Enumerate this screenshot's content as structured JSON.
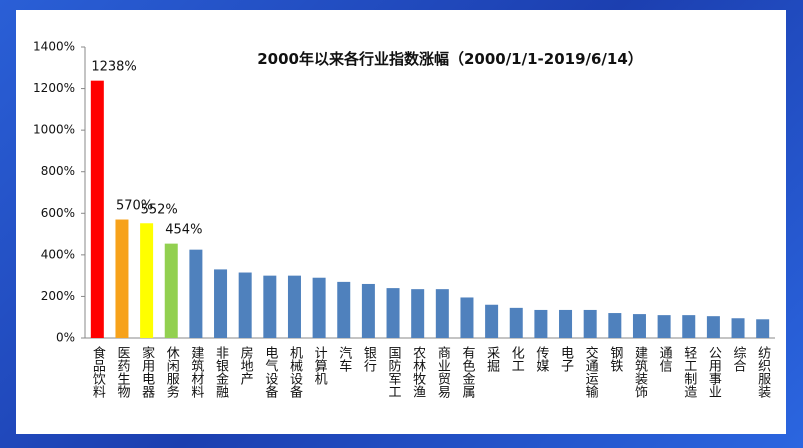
{
  "chart_data": {
    "type": "bar",
    "title": "2000年以来各行业指数涨幅（2000/1/1-2019/6/14）",
    "categories": [
      "食品饮料",
      "医药生物",
      "家用电器",
      "休闲服务",
      "建筑材料",
      "非银金融",
      "房地产",
      "电气设备",
      "机械设备",
      "计算机",
      "汽车",
      "银行",
      "国防军工",
      "农林牧渔",
      "商业贸易",
      "有色金属",
      "采掘",
      "化工",
      "传媒",
      "电子",
      "交通运输",
      "钢铁",
      "建筑装饰",
      "通信",
      "轻工制造",
      "公用事业",
      "综合",
      "纺织服装"
    ],
    "values": [
      1238,
      570,
      552,
      454,
      425,
      330,
      315,
      300,
      300,
      290,
      270,
      260,
      240,
      235,
      235,
      195,
      160,
      145,
      135,
      135,
      135,
      120,
      115,
      110,
      110,
      105,
      95,
      90
    ],
    "value_labels": [
      "1238%",
      "570%",
      "552%",
      "454%",
      null,
      null,
      null,
      null,
      null,
      null,
      null,
      null,
      null,
      null,
      null,
      null,
      null,
      null,
      null,
      null,
      null,
      null,
      null,
      null,
      null,
      null,
      null,
      null
    ],
    "colors": [
      "#ff0000",
      "#f7a21b",
      "#ffff00",
      "#92d050",
      "#4f81bd",
      "#4f81bd",
      "#4f81bd",
      "#4f81bd",
      "#4f81bd",
      "#4f81bd",
      "#4f81bd",
      "#4f81bd",
      "#4f81bd",
      "#4f81bd",
      "#4f81bd",
      "#4f81bd",
      "#4f81bd",
      "#4f81bd",
      "#4f81bd",
      "#4f81bd",
      "#4f81bd",
      "#4f81bd",
      "#4f81bd",
      "#4f81bd",
      "#4f81bd",
      "#4f81bd",
      "#4f81bd",
      "#4f81bd"
    ],
    "ylim": [
      0,
      1400
    ],
    "yticks": [
      {
        "value": 0,
        "label": "0%"
      },
      {
        "value": 200,
        "label": "200%"
      },
      {
        "value": 400,
        "label": "400%"
      },
      {
        "value": 600,
        "label": "600%"
      },
      {
        "value": 800,
        "label": "800%"
      },
      {
        "value": 1000,
        "label": "1000%"
      },
      {
        "value": 1200,
        "label": "1200%"
      },
      {
        "value": 1400,
        "label": "1400%"
      }
    ],
    "grid": false
  }
}
